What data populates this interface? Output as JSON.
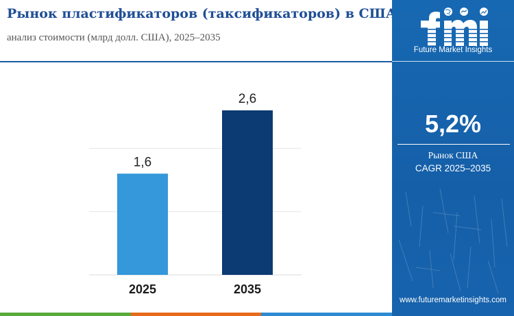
{
  "header": {
    "title": "Рынок пластификаторов (таксификаторов) в США",
    "subtitle": "анализ стоимости (млрд долл. США), 2025–2035"
  },
  "brand": {
    "logo_text": "fmi",
    "tagline": "Future Market Insights",
    "website": "www.futuremarketinsights.com",
    "logo_icons": [
      "globe-icon",
      "handshake-icon",
      "chart-icon"
    ]
  },
  "sidebar": {
    "cagr_value": "5,2%",
    "cagr_label_line1": "Рынок США",
    "cagr_label_line2": "CAGR 2025–2035"
  },
  "colors": {
    "title": "#1f4e96",
    "bar_2025": "#3498db",
    "bar_2035": "#0c3a73",
    "sidebar_bg": "#1768b2",
    "footer": [
      "#5aaa3c",
      "#e86a1a",
      "#2e8bd2"
    ]
  },
  "chart_data": {
    "type": "bar",
    "categories": [
      "2025",
      "2035"
    ],
    "values": [
      1.6,
      2.6
    ],
    "value_labels": [
      "1,6",
      "2,6"
    ],
    "ylim": [
      0,
      2.6
    ],
    "grid": true
  }
}
